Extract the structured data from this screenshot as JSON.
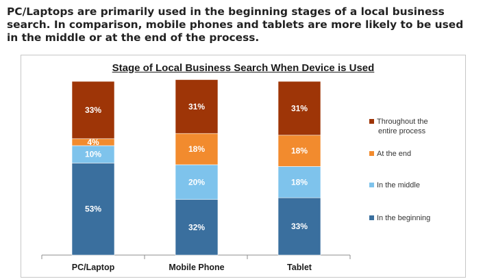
{
  "headline": "PC/Laptops are primarily used in the beginning stages of a local business search. In comparison, mobile phones and tablets are more likely to be used in the middle or at the end of the process.",
  "chart_data": {
    "type": "bar",
    "stacked": true,
    "title": "Stage of Local Business Search When Device is Used",
    "categories": [
      "PC/Laptop",
      "Mobile Phone",
      "Tablet"
    ],
    "ylim": [
      0,
      100
    ],
    "grid": false,
    "legend_position": "right",
    "series": [
      {
        "name": "In the beginning",
        "color": "#3a6f9e",
        "values": [
          53,
          32,
          33
        ],
        "labels": [
          "53%",
          "32%",
          "33%"
        ]
      },
      {
        "name": "In the middle",
        "color": "#7ec3ec",
        "values": [
          10,
          20,
          18
        ],
        "labels": [
          "10%",
          "20%",
          "18%"
        ]
      },
      {
        "name": "At the end",
        "color": "#f28b2e",
        "values": [
          4,
          18,
          18
        ],
        "labels": [
          "4%",
          "18%",
          "18%"
        ]
      },
      {
        "name": "Throughout the entire process",
        "color": "#9e3507",
        "values": [
          33,
          31,
          31
        ],
        "labels": [
          "33%",
          "31%",
          "31%"
        ]
      }
    ]
  }
}
